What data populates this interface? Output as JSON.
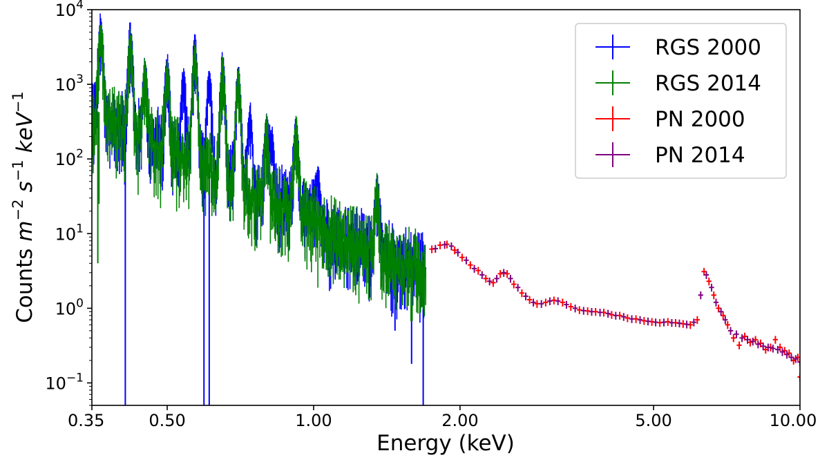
{
  "chart_data": {
    "type": "scatter",
    "x_scale": "log",
    "y_scale": "log",
    "xlim": [
      0.35,
      10.0
    ],
    "ylim": [
      0.05,
      10000
    ],
    "xlabel": "Energy (keV)",
    "ylabel": {
      "prefix": "Counts ",
      "m": "m",
      "m_exp": "−2",
      "s": "s",
      "s_exp": "−1",
      "kev": "keV",
      "kev_exp": "−1"
    },
    "x_ticks": [
      {
        "value": 0.35,
        "label": "0.35"
      },
      {
        "value": 0.5,
        "label": "0.50"
      },
      {
        "value": 1.0,
        "label": "1.00"
      },
      {
        "value": 2.0,
        "label": "2.00"
      },
      {
        "value": 5.0,
        "label": "5.00"
      },
      {
        "value": 10.0,
        "label": "10.00"
      }
    ],
    "y_ticks": [
      {
        "value": 0.1,
        "base": "10",
        "exp": "−1"
      },
      {
        "value": 1,
        "base": "10",
        "exp": "0"
      },
      {
        "value": 10,
        "base": "10",
        "exp": "1"
      },
      {
        "value": 100,
        "base": "10",
        "exp": "2"
      },
      {
        "value": 1000,
        "base": "10",
        "exp": "3"
      },
      {
        "value": 10000,
        "base": "10",
        "exp": "4"
      }
    ],
    "grid": false,
    "legend_position": "top-right",
    "colors": {
      "rgs2000": "#0000ff",
      "rgs2014": "#008000",
      "pn2000": "#ff0000",
      "pn2014": "#800080"
    },
    "series": [
      {
        "name": "RGS 2000",
        "key": "rgs2000",
        "style": "errorbar",
        "range": [
          0.35,
          1.7
        ],
        "continuum_points": [
          [
            0.35,
            500
          ],
          [
            0.4,
            300
          ],
          [
            0.5,
            150
          ],
          [
            0.6,
            90
          ],
          [
            0.7,
            50
          ],
          [
            0.8,
            30
          ],
          [
            0.9,
            25
          ],
          [
            1.0,
            18
          ],
          [
            1.1,
            11
          ],
          [
            1.2,
            9
          ],
          [
            1.3,
            7
          ],
          [
            1.5,
            4.5
          ],
          [
            1.7,
            4
          ]
        ],
        "lines": [
          {
            "e": 0.365,
            "y": 4600
          },
          {
            "e": 0.42,
            "y": 3600
          },
          {
            "e": 0.45,
            "y": 1100
          },
          {
            "e": 0.5,
            "y": 1300
          },
          {
            "e": 0.54,
            "y": 900
          },
          {
            "e": 0.57,
            "y": 2600
          },
          {
            "e": 0.61,
            "y": 1000
          },
          {
            "e": 0.65,
            "y": 1500
          },
          {
            "e": 0.7,
            "y": 1100
          },
          {
            "e": 0.74,
            "y": 300
          },
          {
            "e": 0.8,
            "y": 200
          },
          {
            "e": 0.82,
            "y": 140
          },
          {
            "e": 0.92,
            "y": 210
          },
          {
            "e": 1.02,
            "y": 38
          },
          {
            "e": 1.35,
            "y": 32
          }
        ],
        "dropouts": [
          {
            "e": 0.41,
            "y": 0.05
          },
          {
            "e": 0.595,
            "y": 0.05
          },
          {
            "e": 0.61,
            "y": 0.05
          },
          {
            "e": 1.47,
            "y": 0.5
          },
          {
            "e": 1.59,
            "y": 0.18
          },
          {
            "e": 1.68,
            "y": 0.05
          }
        ]
      },
      {
        "name": "RGS 2014",
        "key": "rgs2014",
        "style": "errorbar",
        "range": [
          0.35,
          1.7
        ],
        "continuum_points": [
          [
            0.35,
            480
          ],
          [
            0.4,
            290
          ],
          [
            0.5,
            145
          ],
          [
            0.6,
            85
          ],
          [
            0.7,
            48
          ],
          [
            0.8,
            29
          ],
          [
            0.9,
            24
          ],
          [
            1.0,
            17
          ],
          [
            1.1,
            10.5
          ],
          [
            1.2,
            8.5
          ],
          [
            1.3,
            6.8
          ],
          [
            1.5,
            4.3
          ],
          [
            1.7,
            3.8
          ]
        ],
        "lines": [
          {
            "e": 0.365,
            "y": 4000
          },
          {
            "e": 0.42,
            "y": 3000
          },
          {
            "e": 0.45,
            "y": 1000
          },
          {
            "e": 0.5,
            "y": 1200
          },
          {
            "e": 0.57,
            "y": 2200
          },
          {
            "e": 0.65,
            "y": 1300
          },
          {
            "e": 0.7,
            "y": 1000
          },
          {
            "e": 0.8,
            "y": 180
          },
          {
            "e": 0.92,
            "y": 190
          },
          {
            "e": 1.35,
            "y": 30
          }
        ],
        "dropouts": [
          {
            "e": 0.36,
            "y": 4
          },
          {
            "e": 0.362,
            "y": 25
          },
          {
            "e": 0.99,
            "y": 12
          }
        ]
      },
      {
        "name": "PN 2000",
        "key": "pn2000",
        "style": "errorbar",
        "points": [
          [
            1.75,
            6.2
          ],
          [
            1.82,
            7.0
          ],
          [
            1.88,
            7.2
          ],
          [
            1.95,
            6.0
          ],
          [
            2.02,
            4.8
          ],
          [
            2.1,
            3.8
          ],
          [
            2.18,
            3.2
          ],
          [
            2.26,
            2.5
          ],
          [
            2.34,
            2.2
          ],
          [
            2.42,
            2.9
          ],
          [
            2.5,
            2.9
          ],
          [
            2.58,
            2.1
          ],
          [
            2.68,
            1.6
          ],
          [
            2.78,
            1.3
          ],
          [
            2.88,
            1.15
          ],
          [
            3.0,
            1.2
          ],
          [
            3.12,
            1.28
          ],
          [
            3.25,
            1.2
          ],
          [
            3.38,
            1.05
          ],
          [
            3.52,
            0.95
          ],
          [
            3.66,
            0.92
          ],
          [
            3.8,
            0.9
          ],
          [
            3.95,
            0.88
          ],
          [
            4.1,
            0.82
          ],
          [
            4.26,
            0.8
          ],
          [
            4.42,
            0.74
          ],
          [
            4.6,
            0.72
          ],
          [
            4.78,
            0.68
          ],
          [
            4.96,
            0.66
          ],
          [
            5.15,
            0.64
          ],
          [
            5.35,
            0.66
          ],
          [
            5.55,
            0.64
          ],
          [
            5.75,
            0.62
          ],
          [
            5.95,
            0.6
          ],
          [
            6.15,
            0.7
          ],
          [
            6.35,
            3.1
          ],
          [
            6.5,
            2.3
          ],
          [
            6.65,
            1.5
          ],
          [
            6.8,
            1.0
          ],
          [
            6.95,
            0.8
          ],
          [
            7.1,
            0.6
          ],
          [
            7.3,
            0.4
          ],
          [
            7.5,
            0.32
          ],
          [
            7.7,
            0.42
          ],
          [
            7.9,
            0.35
          ],
          [
            8.1,
            0.38
          ],
          [
            8.3,
            0.34
          ],
          [
            8.5,
            0.28
          ],
          [
            8.7,
            0.3
          ],
          [
            8.9,
            0.38
          ],
          [
            9.1,
            0.3
          ],
          [
            9.3,
            0.27
          ],
          [
            9.5,
            0.25
          ],
          [
            9.7,
            0.2
          ],
          [
            9.9,
            0.22
          ],
          [
            10.0,
            0.12
          ]
        ]
      },
      {
        "name": "PN 2014",
        "key": "pn2014",
        "style": "errorbar",
        "points": [
          [
            1.78,
            6.3
          ],
          [
            1.86,
            7.1
          ],
          [
            1.92,
            6.8
          ],
          [
            1.98,
            5.6
          ],
          [
            2.06,
            4.4
          ],
          [
            2.14,
            3.4
          ],
          [
            2.22,
            2.8
          ],
          [
            2.3,
            2.3
          ],
          [
            2.38,
            2.5
          ],
          [
            2.46,
            3.0
          ],
          [
            2.54,
            2.5
          ],
          [
            2.63,
            1.9
          ],
          [
            2.73,
            1.45
          ],
          [
            2.83,
            1.2
          ],
          [
            2.94,
            1.15
          ],
          [
            3.06,
            1.25
          ],
          [
            3.18,
            1.25
          ],
          [
            3.31,
            1.12
          ],
          [
            3.45,
            1.0
          ],
          [
            3.59,
            0.93
          ],
          [
            3.73,
            0.9
          ],
          [
            3.88,
            0.88
          ],
          [
            4.03,
            0.85
          ],
          [
            4.18,
            0.8
          ],
          [
            4.34,
            0.77
          ],
          [
            4.51,
            0.72
          ],
          [
            4.69,
            0.7
          ],
          [
            4.87,
            0.67
          ],
          [
            5.05,
            0.65
          ],
          [
            5.25,
            0.65
          ],
          [
            5.45,
            0.64
          ],
          [
            5.65,
            0.63
          ],
          [
            5.85,
            0.61
          ],
          [
            6.05,
            0.65
          ],
          [
            6.25,
            1.5
          ],
          [
            6.42,
            2.8
          ],
          [
            6.58,
            1.9
          ],
          [
            6.72,
            1.2
          ],
          [
            6.88,
            0.9
          ],
          [
            7.02,
            0.7
          ],
          [
            7.2,
            0.5
          ],
          [
            7.4,
            0.45
          ],
          [
            7.6,
            0.4
          ],
          [
            7.8,
            0.38
          ],
          [
            8.0,
            0.36
          ],
          [
            8.2,
            0.33
          ],
          [
            8.4,
            0.31
          ],
          [
            8.6,
            0.3
          ],
          [
            8.8,
            0.29
          ],
          [
            9.0,
            0.28
          ],
          [
            9.2,
            0.26
          ],
          [
            9.4,
            0.24
          ],
          [
            9.6,
            0.22
          ],
          [
            9.8,
            0.21
          ],
          [
            10.0,
            0.19
          ]
        ]
      }
    ]
  }
}
